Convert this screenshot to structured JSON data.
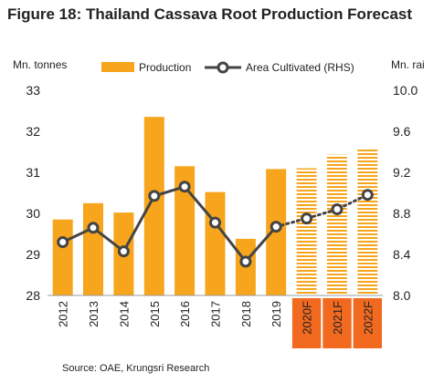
{
  "title": "Figure 18: Thailand Cassava Root Production Forecast",
  "source": "Source: OAE, Krungsri Research",
  "colors": {
    "bar": "#F7A51D",
    "forecast_bar": "#F7A51D",
    "forecast_label_bg": "#F26A1F",
    "line": "#444444",
    "marker_fill": "#ffffff"
  },
  "chart_data": {
    "type": "bar",
    "categories": [
      "2012",
      "2013",
      "2014",
      "2015",
      "2016",
      "2017",
      "2018",
      "2019",
      "2020F",
      "2021F",
      "2022F"
    ],
    "forecast_categories": [
      "2020F",
      "2021F",
      "2022F"
    ],
    "ylabel": "Mn. tonnes",
    "ylabel_right": "Mn. rai",
    "ylim": [
      28,
      33
    ],
    "yticks": [
      "28",
      "29",
      "30",
      "31",
      "32",
      "33"
    ],
    "ylim_right": [
      8.0,
      10.0
    ],
    "yticks_right": [
      "8.0",
      "8.4",
      "8.8",
      "9.2",
      "9.6",
      "10.0"
    ],
    "grid": false,
    "legend": "top",
    "series": [
      {
        "name": "Production",
        "type": "bar",
        "axis": "left",
        "values": [
          29.85,
          30.25,
          30.02,
          32.35,
          31.15,
          30.52,
          29.38,
          31.08,
          31.1,
          31.43,
          31.58
        ]
      },
      {
        "name": "Area Cultivated (RHS)",
        "type": "line",
        "axis": "right",
        "values": [
          8.52,
          8.66,
          8.43,
          8.97,
          9.06,
          8.71,
          8.33,
          8.67,
          8.75,
          8.84,
          8.98
        ]
      }
    ]
  }
}
